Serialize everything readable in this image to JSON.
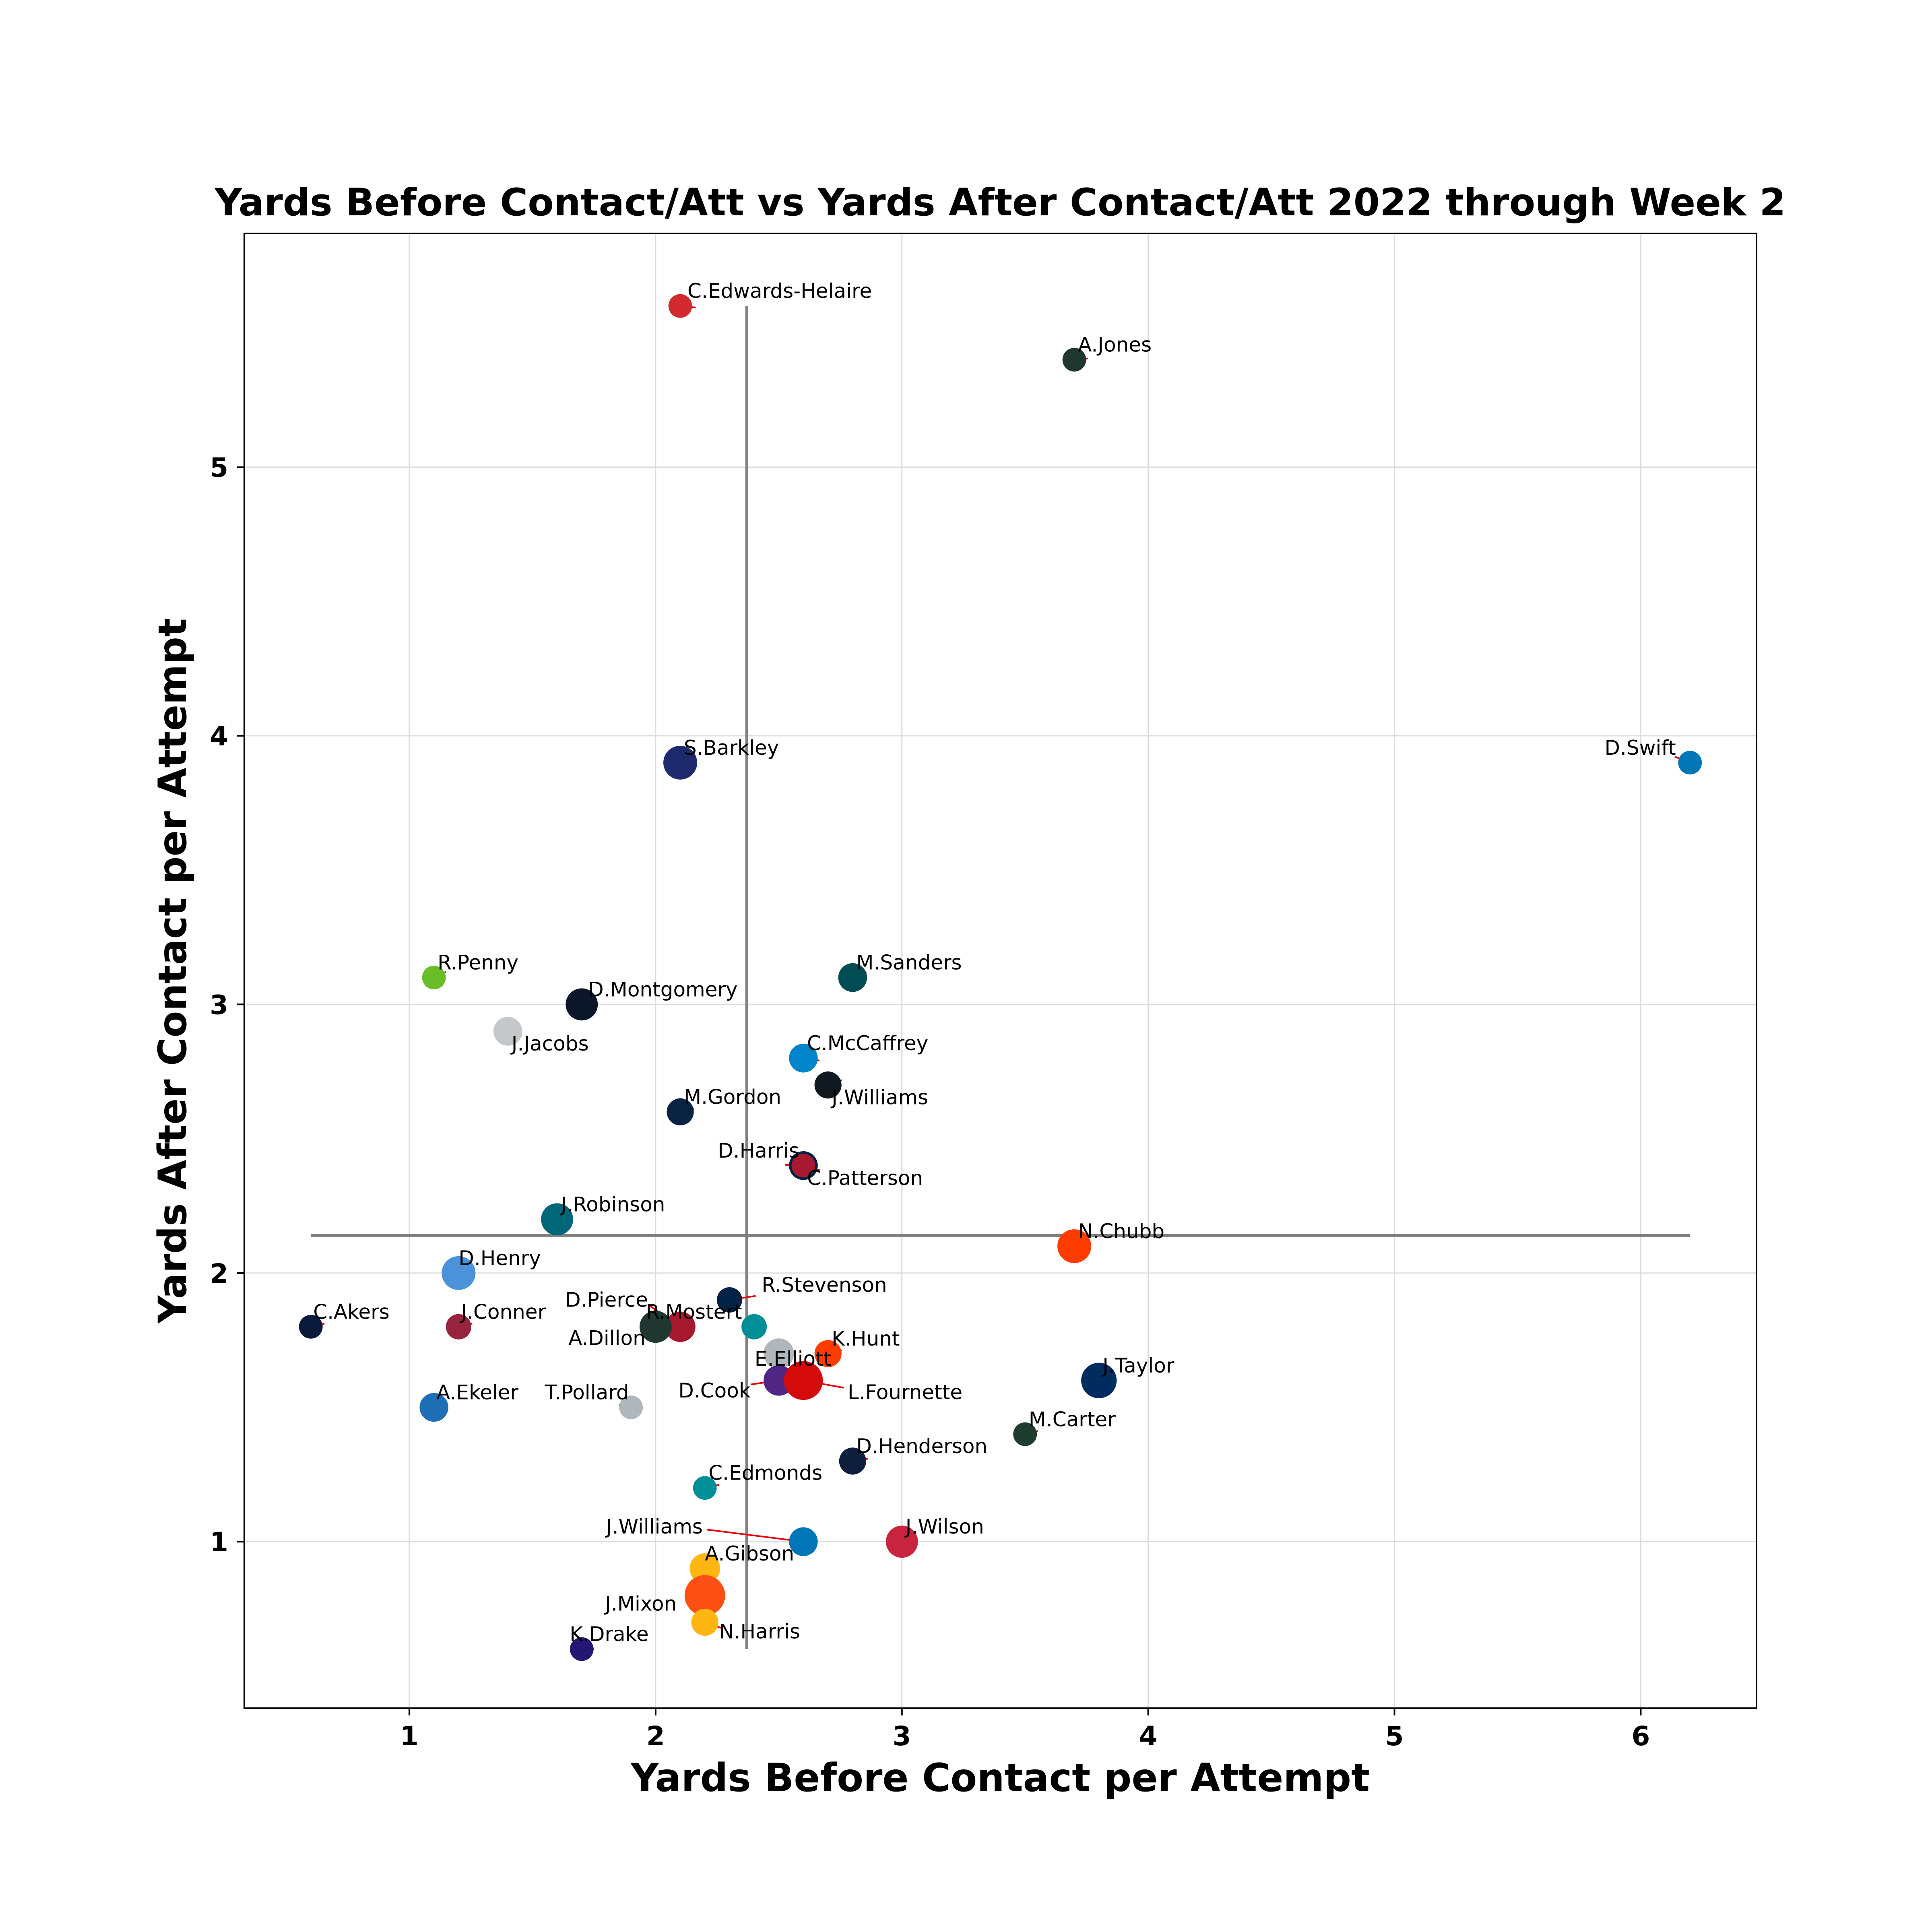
{
  "chart_data": {
    "type": "scatter",
    "title": "Yards Before Contact/Att vs Yards After Contact/Att 2022 through Week 2",
    "xlabel": "Yards Before Contact per Attempt",
    "ylabel": "Yards After Contact per Attempt",
    "xlim": [
      0.33,
      6.47
    ],
    "ylim": [
      0.38,
      5.87
    ],
    "xticks": [
      1,
      2,
      3,
      4,
      5,
      6
    ],
    "yticks": [
      1,
      2,
      3,
      4,
      5
    ],
    "grid": true,
    "mean_lines": {
      "x": 2.37,
      "y": 2.14,
      "x_range": [
        0.6,
        6.2
      ],
      "y_range": [
        0.6,
        5.6
      ]
    },
    "annotation_arrow_color": "#e8000b",
    "guide_line_color": "#808080",
    "points": [
      {
        "name": "C.Edwards-Helaire",
        "x": 2.1,
        "y": 5.6,
        "color": "#d12b2f",
        "size": 14
      },
      {
        "name": "A.Jones",
        "x": 3.7,
        "y": 5.4,
        "color": "#203731",
        "size": 14
      },
      {
        "name": "S.Barkley",
        "x": 2.1,
        "y": 3.9,
        "color": "#1e2a6e",
        "size": 20
      },
      {
        "name": "D.Swift",
        "x": 6.2,
        "y": 3.9,
        "color": "#0076b6",
        "size": 14
      },
      {
        "name": "R.Penny",
        "x": 1.1,
        "y": 3.1,
        "color": "#69be28",
        "size": 14
      },
      {
        "name": "M.Sanders",
        "x": 2.8,
        "y": 3.1,
        "color": "#004c54",
        "size": 17
      },
      {
        "name": "D.Montgomery",
        "x": 1.7,
        "y": 3.0,
        "color": "#0b162a",
        "size": 19
      },
      {
        "name": "J.Jacobs",
        "x": 1.4,
        "y": 2.9,
        "color": "#c4c8cb",
        "size": 17
      },
      {
        "name": "C.McCaffrey",
        "x": 2.6,
        "y": 2.8,
        "color": "#0085ca",
        "size": 17
      },
      {
        "name": "J.Williams",
        "x": 2.7,
        "y": 2.7,
        "color": "#101820",
        "size": 16
      },
      {
        "name": "M.Gordon",
        "x": 2.1,
        "y": 2.6,
        "color": "#0a2343",
        "size": 16
      },
      {
        "name": "D.Harris",
        "x": 2.6,
        "y": 2.4,
        "color": "#002244",
        "size": 17
      },
      {
        "name": "C.Patterson",
        "x": 2.6,
        "y": 2.4,
        "color": "#a71930",
        "size": 14
      },
      {
        "name": "J.Robinson",
        "x": 1.6,
        "y": 2.2,
        "color": "#006778",
        "size": 19
      },
      {
        "name": "N.Chubb",
        "x": 3.7,
        "y": 2.1,
        "color": "#ff3c00",
        "size": 20
      },
      {
        "name": "D.Henry",
        "x": 1.2,
        "y": 2.0,
        "color": "#4b92db",
        "size": 20
      },
      {
        "name": "R.Stevenson",
        "x": 2.3,
        "y": 1.9,
        "color": "#002244",
        "size": 15
      },
      {
        "name": "D.Pierce",
        "x": 2.1,
        "y": 1.8,
        "color": "#a6192e",
        "size": 18
      },
      {
        "name": "R.Mostert",
        "x": 2.4,
        "y": 1.8,
        "color": "#008e97",
        "size": 15
      },
      {
        "name": "A.Dillon",
        "x": 2.0,
        "y": 1.8,
        "color": "#203731",
        "size": 19
      },
      {
        "name": "C.Akers",
        "x": 0.6,
        "y": 1.8,
        "color": "#0a1a3a",
        "size": 14
      },
      {
        "name": "J.Conner",
        "x": 1.2,
        "y": 1.8,
        "color": "#97233f",
        "size": 15
      },
      {
        "name": "K.Hunt",
        "x": 2.7,
        "y": 1.7,
        "color": "#ff3c00",
        "size": 16
      },
      {
        "name": "E.Elliott",
        "x": 2.5,
        "y": 1.7,
        "color": "#b0b7bc",
        "size": 18
      },
      {
        "name": "J.Taylor",
        "x": 3.8,
        "y": 1.6,
        "color": "#002c5f",
        "size": 21
      },
      {
        "name": "D.Cook",
        "x": 2.5,
        "y": 1.6,
        "color": "#4f2683",
        "size": 18
      },
      {
        "name": "L.Fournette",
        "x": 2.6,
        "y": 1.6,
        "color": "#d50a0a",
        "size": 23
      },
      {
        "name": "A.Ekeler",
        "x": 1.1,
        "y": 1.5,
        "color": "#1f6fb7",
        "size": 17
      },
      {
        "name": "T.Pollard",
        "x": 1.9,
        "y": 1.5,
        "color": "#b0b7bc",
        "size": 14
      },
      {
        "name": "M.Carter",
        "x": 3.5,
        "y": 1.4,
        "color": "#1f3d2f",
        "size": 14
      },
      {
        "name": "D.Henderson",
        "x": 2.8,
        "y": 1.3,
        "color": "#0d1f3c",
        "size": 16
      },
      {
        "name": "C.Edmonds",
        "x": 2.2,
        "y": 1.2,
        "color": "#008e97",
        "size": 14
      },
      {
        "name": "J.Williams",
        "x": 2.6,
        "y": 1.0,
        "color": "#0076b6",
        "size": 17
      },
      {
        "name": "J.Wilson",
        "x": 3.0,
        "y": 1.0,
        "color": "#c8243f",
        "size": 19
      },
      {
        "name": "A.Gibson",
        "x": 2.2,
        "y": 0.9,
        "color": "#ffb612",
        "size": 18
      },
      {
        "name": "J.Mixon",
        "x": 2.2,
        "y": 0.8,
        "color": "#fb4f14",
        "size": 24
      },
      {
        "name": "N.Harris",
        "x": 2.2,
        "y": 0.7,
        "color": "#ffb612",
        "size": 16
      },
      {
        "name": "K.Drake",
        "x": 1.7,
        "y": 0.6,
        "color": "#241773",
        "size": 14
      }
    ]
  }
}
